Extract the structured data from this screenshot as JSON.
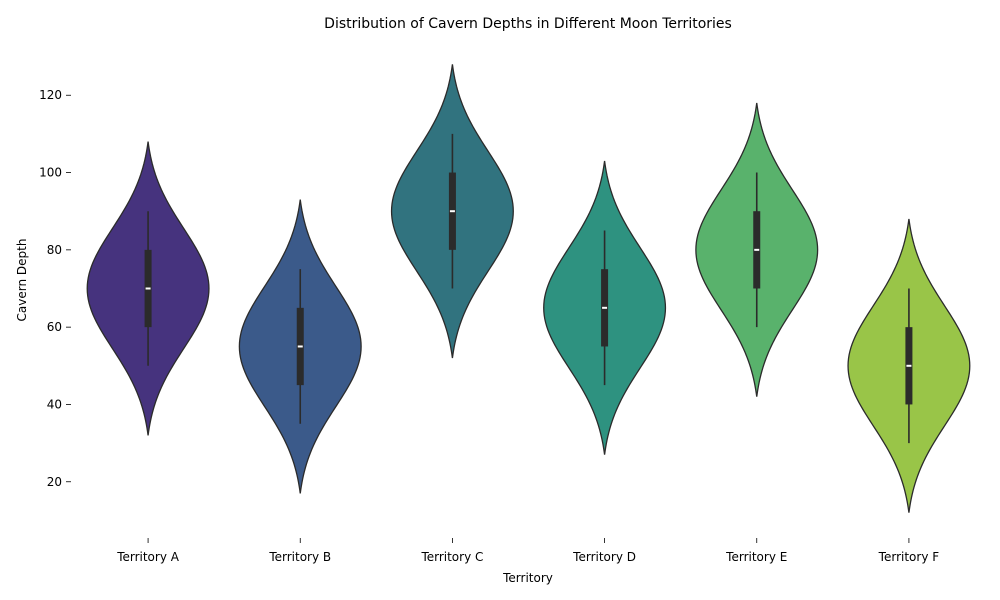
{
  "chart_data": {
    "type": "violin",
    "title": "Distribution of Cavern Depths in Different Moon Territories",
    "xlabel": "Territory",
    "ylabel": "Cavern Depth",
    "ylim": [
      7,
      133
    ],
    "yticks": [
      20,
      40,
      60,
      80,
      100,
      120
    ],
    "grid": false,
    "legend": "none",
    "categories": [
      "Territory A",
      "Territory B",
      "Territory C",
      "Territory D",
      "Territory E",
      "Territory F"
    ],
    "colors": [
      "#46337e",
      "#3b5a8a",
      "#31737f",
      "#2e9280",
      "#59b26c",
      "#99c548"
    ],
    "series": [
      {
        "category": "Territory A",
        "min": 50,
        "q1": 60,
        "median": 70,
        "q3": 80,
        "max": 90,
        "kde_min": 32,
        "kde_max": 108
      },
      {
        "category": "Territory B",
        "min": 35,
        "q1": 45,
        "median": 55,
        "q3": 65,
        "max": 75,
        "kde_min": 17,
        "kde_max": 93
      },
      {
        "category": "Territory C",
        "min": 70,
        "q1": 80,
        "median": 90,
        "q3": 100,
        "max": 110,
        "kde_min": 52,
        "kde_max": 128
      },
      {
        "category": "Territory D",
        "min": 45,
        "q1": 55,
        "median": 65,
        "q3": 75,
        "max": 85,
        "kde_min": 27,
        "kde_max": 103
      },
      {
        "category": "Territory E",
        "min": 60,
        "q1": 70,
        "median": 80,
        "q3": 90,
        "max": 100,
        "kde_min": 42,
        "kde_max": 118
      },
      {
        "category": "Territory F",
        "min": 30,
        "q1": 40,
        "median": 50,
        "q3": 60,
        "max": 70,
        "kde_min": 12,
        "kde_max": 88
      }
    ]
  }
}
